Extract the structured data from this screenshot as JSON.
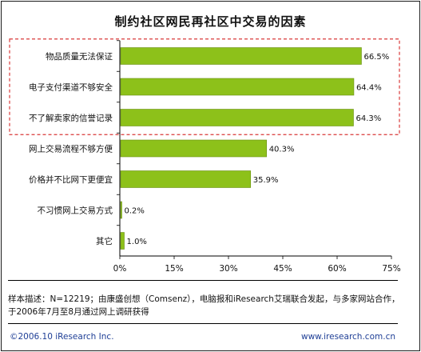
{
  "chart_data": {
    "type": "bar",
    "orientation": "horizontal",
    "title": "制约社区网民再社区中交易的因素",
    "categories": [
      "物品质量无法保证",
      "电子支付渠道不够安全",
      "不了解卖家的信誉记录",
      "网上交易流程不够方便",
      "价格并不比网下更便宜",
      "不习惯网上交易方式",
      "其它"
    ],
    "values": [
      66.5,
      64.4,
      64.3,
      40.3,
      35.9,
      0.2,
      1.0
    ],
    "value_labels": [
      "66.5%",
      "64.4%",
      "64.3%",
      "40.3%",
      "35.9%",
      "0.2%",
      "1.0%"
    ],
    "xlim": [
      0,
      75
    ],
    "xticks": [
      0,
      15,
      30,
      45,
      60,
      75
    ],
    "xtick_labels": [
      "0%",
      "15%",
      "30%",
      "45%",
      "60%",
      "75%"
    ],
    "highlighted_categories": 3,
    "bar_color": "#8dc11a",
    "grid": false,
    "legend": "none"
  },
  "note": {
    "line1": "样本描述：N=12219；由康盛创想（Comsenz），电脑报和iResearch艾瑞联合发起，与多家网站合作，",
    "line2": "于2006年7月至8月通过网上调研获得"
  },
  "footer": {
    "copyright": "©2006.10 iResearch Inc.",
    "url": "www.iresearch.com.cn"
  },
  "colors": {
    "highlight_border": "#d93a3a",
    "footer_text": "#1f3f96"
  }
}
